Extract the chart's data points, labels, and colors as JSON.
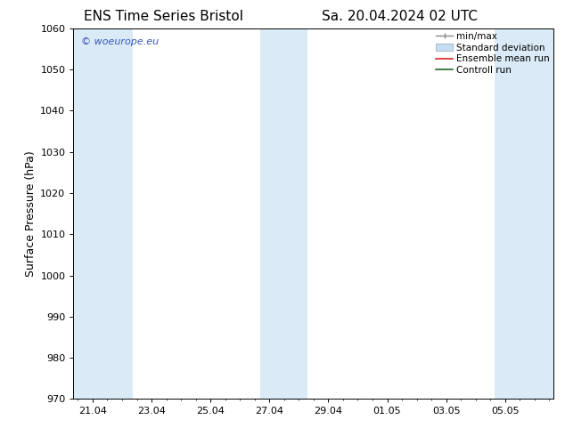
{
  "title_left": "ENS Time Series Bristol",
  "title_right": "Sa. 20.04.2024 02 UTC",
  "ylabel": "Surface Pressure (hPa)",
  "ylim": [
    970,
    1060
  ],
  "yticks": [
    970,
    980,
    990,
    1000,
    1010,
    1020,
    1030,
    1040,
    1050,
    1060
  ],
  "xtick_labels": [
    "21.04",
    "23.04",
    "25.04",
    "27.04",
    "29.04",
    "01.05",
    "03.05",
    "05.05"
  ],
  "xtick_positions": [
    0,
    2,
    4,
    6,
    8,
    10,
    12,
    14
  ],
  "watermark": "© woeurope.eu",
  "watermark_color": "#3355bb",
  "bg_color": "#ffffff",
  "plot_bg_color": "#ffffff",
  "band_color": "#daeaf7",
  "legend_labels": [
    "min/max",
    "Standard deviation",
    "Ensemble mean run",
    "Controll run"
  ],
  "shaded_bands": [
    {
      "xmin": -0.65,
      "xmax": 1.35
    },
    {
      "xmin": 5.7,
      "xmax": 7.3
    },
    {
      "xmin": 13.65,
      "xmax": 15.65
    }
  ],
  "title_fontsize": 11,
  "axis_label_fontsize": 9,
  "tick_fontsize": 8,
  "legend_fontsize": 7.5,
  "xlim": [
    -0.65,
    15.65
  ]
}
